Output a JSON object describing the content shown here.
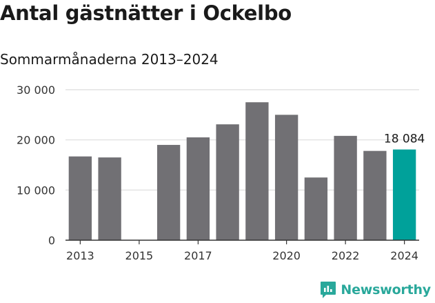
{
  "title": "Antal gästnätter i Ockelbo",
  "subtitle": "Sommarmånaderna 2013–2024",
  "brand": "Newsworthy",
  "colors": {
    "bar": "#717074",
    "highlight": "#00a19a",
    "grid": "#dcdcdc",
    "axis": "#333333"
  },
  "chart_data": {
    "type": "bar",
    "categories": [
      "2013",
      "2014",
      "2015",
      "2016",
      "2017",
      "2018",
      "2019",
      "2020",
      "2021",
      "2022",
      "2023",
      "2024"
    ],
    "values": [
      16700,
      16500,
      null,
      19000,
      20500,
      23100,
      27500,
      25000,
      12500,
      20800,
      17800,
      18084
    ],
    "highlight_index": 11,
    "data_labels": [
      {
        "index": 11,
        "text": "18 084"
      }
    ],
    "ylim": [
      0,
      30000
    ],
    "yticks": [
      0,
      10000,
      20000,
      30000
    ],
    "ytick_labels": [
      "0",
      "10 000",
      "20 000",
      "30 000"
    ],
    "xtick_labels": [
      {
        "category": "2013",
        "label": "2013"
      },
      {
        "category": "2015",
        "label": "2015"
      },
      {
        "category": "2017",
        "label": "2017"
      },
      {
        "category": "2020",
        "label": "2020"
      },
      {
        "category": "2022",
        "label": "2022"
      },
      {
        "category": "2024",
        "label": "2024"
      }
    ],
    "grid": true,
    "xlabel": "",
    "ylabel": ""
  }
}
